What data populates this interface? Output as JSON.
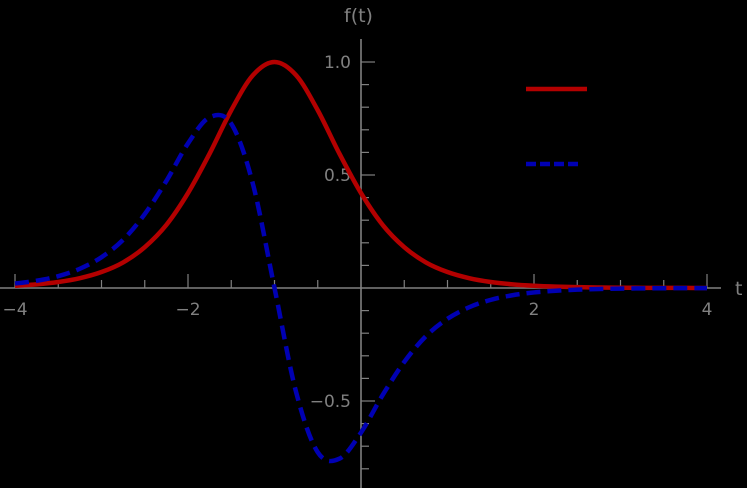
{
  "chart_data": {
    "type": "line",
    "title": "",
    "xlabel": "t",
    "ylabel": "f(t)",
    "xlim": [
      -4.18,
      4.17
    ],
    "ylim": [
      -0.87,
      1.1
    ],
    "grid": false,
    "legend_position": "upper right (inside plot)",
    "x_ticks": [
      -4,
      -2,
      2,
      4
    ],
    "x_tick_labels": [
      "−4",
      "−2",
      "2",
      "4"
    ],
    "y_ticks": [
      -0.5,
      0.5,
      1.0
    ],
    "y_tick_labels": [
      "−0.5",
      "0.5",
      "1.0"
    ],
    "x": [
      -4,
      -3.75,
      -3.5,
      -3.25,
      -3,
      -2.75,
      -2.5,
      -2.25,
      -2,
      -1.75,
      -1.5,
      -1.25,
      -1,
      -0.75,
      -0.5,
      -0.25,
      0,
      0.25,
      0.5,
      0.75,
      1,
      1.25,
      1.5,
      1.75,
      2,
      2.25,
      2.5,
      2.75,
      3,
      3.25,
      3.5,
      3.75,
      4
    ],
    "series": [
      {
        "name": "",
        "style": "solid",
        "color": "#b30000",
        "values": [
          0.00987,
          0.01621,
          0.0266,
          0.04355,
          0.07065,
          0.11334,
          0.18071,
          0.27925,
          0.41997,
          0.5947,
          0.78645,
          0.94123,
          1.0,
          0.94123,
          0.78645,
          0.5947,
          0.41997,
          0.27925,
          0.18071,
          0.11334,
          0.07065,
          0.04355,
          0.0266,
          0.01621,
          0.00987,
          0.006,
          0.00364,
          0.00221,
          0.00134,
          0.00081,
          0.00049,
          0.0003,
          0.00018
        ]
      },
      {
        "name": "",
        "style": "dashed",
        "color": "#0000b3",
        "values": [
          0.01964,
          0.03216,
          0.05249,
          0.08519,
          0.13622,
          0.21339,
          0.32714,
          0.47376,
          0.6397,
          0.75545,
          0.72687,
          0.46105,
          0.0,
          -0.46105,
          -0.72687,
          -0.75545,
          -0.6397,
          -0.47376,
          -0.32714,
          -0.21339,
          -0.13622,
          -0.08519,
          -0.05249,
          -0.03216,
          -0.01964,
          -0.012,
          -0.00728,
          -0.00442,
          -0.00268,
          -0.00162,
          -0.00098,
          -0.0006,
          -0.00036
        ]
      }
    ],
    "legend": [
      {
        "label": "",
        "color": "#b30000",
        "style": "solid"
      },
      {
        "label": "",
        "color": "#0000b3",
        "style": "dashed"
      }
    ]
  },
  "style": {
    "background": "#000000",
    "axis_color": "#808080",
    "label_color": "#808080"
  }
}
